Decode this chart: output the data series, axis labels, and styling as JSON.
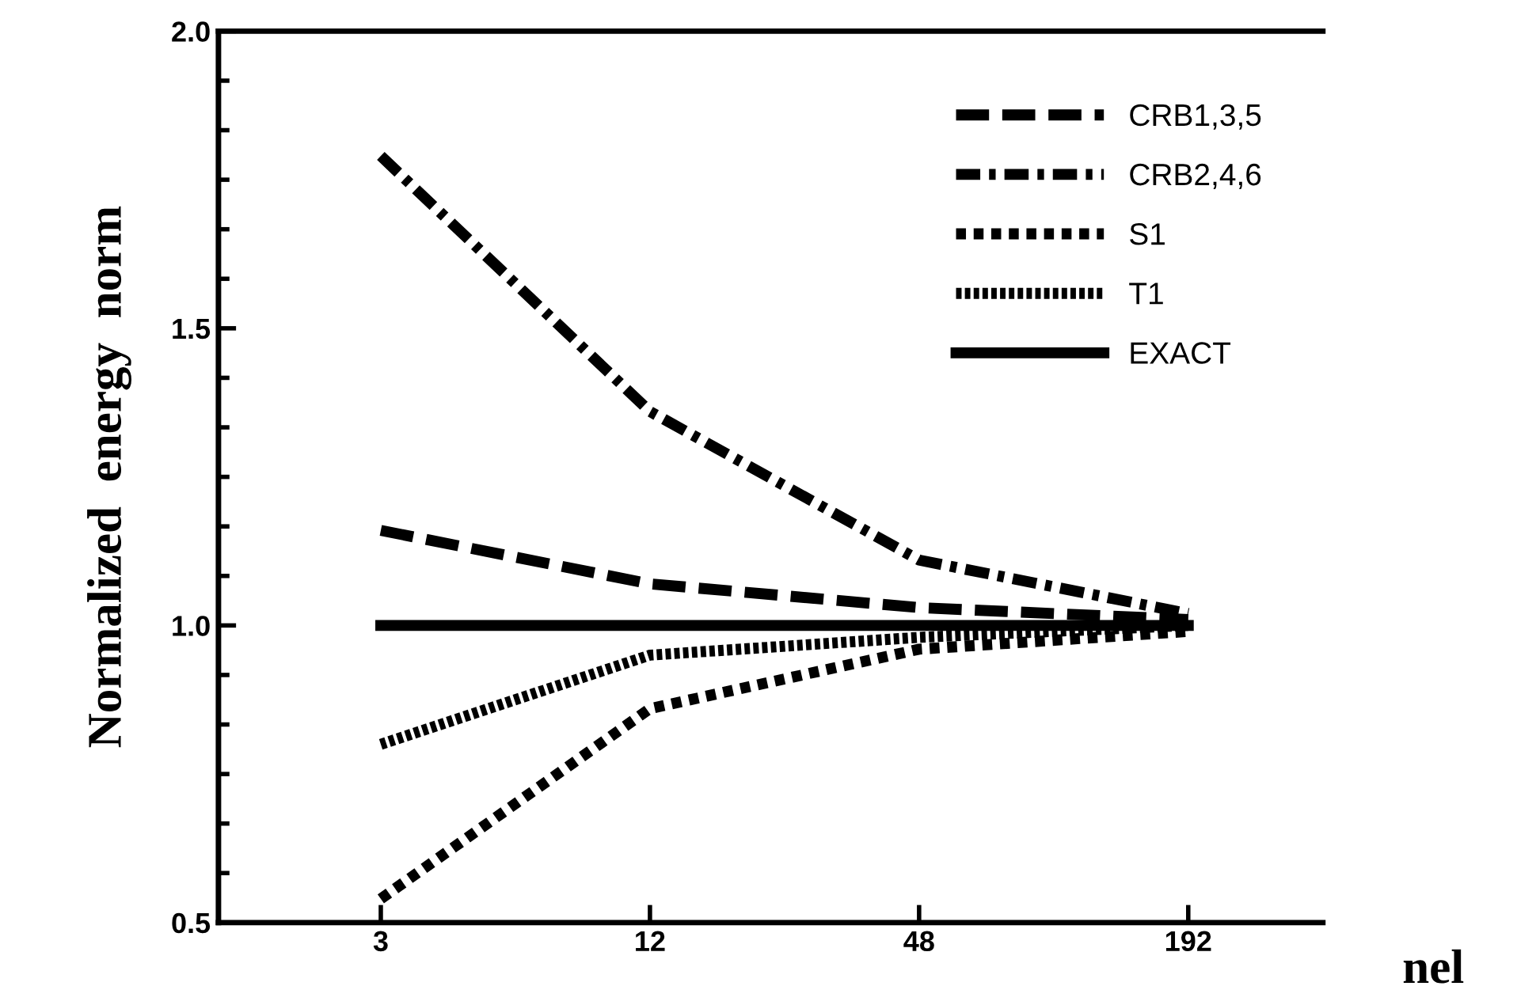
{
  "chart_data": {
    "type": "line",
    "xlabel": "nel",
    "ylabel": "Normalized  energy  norm",
    "x": [
      3,
      12,
      48,
      192
    ],
    "log": "x",
    "xlim": [
      1.3,
      384
    ],
    "xticks": [
      3,
      12,
      48,
      192
    ],
    "ylim": [
      0.5,
      2.0
    ],
    "yticks": [
      {
        "value": 0.5,
        "label": "0.5"
      },
      {
        "value": 1.0,
        "label": "1.0"
      },
      {
        "value": 1.5,
        "label": "1.5"
      },
      {
        "value": 2.0,
        "label": "2.0"
      }
    ],
    "grid": false,
    "legend": "top right",
    "marker": "none",
    "series": [
      {
        "name": "CRB1,3,5",
        "color": "#000000",
        "line_style": "dashed",
        "values": [
          1.16,
          1.07,
          1.03,
          1.01
        ]
      },
      {
        "name": "CRB2,4,6",
        "color": "#000000",
        "line_style": "dashdot",
        "values": [
          1.79,
          1.36,
          1.11,
          1.02
        ]
      },
      {
        "name": "S1",
        "color": "#000000",
        "line_style": "dotted",
        "values": [
          0.54,
          0.86,
          0.96,
          0.99
        ]
      },
      {
        "name": "T1",
        "color": "#000000",
        "line_style": "densely dotted",
        "values": [
          0.8,
          0.95,
          0.98,
          1.0
        ]
      },
      {
        "name": "EXACT",
        "color": "#000000",
        "line_style": "solid",
        "values": [
          1.0,
          1.0,
          1.0,
          1.0
        ]
      }
    ]
  }
}
